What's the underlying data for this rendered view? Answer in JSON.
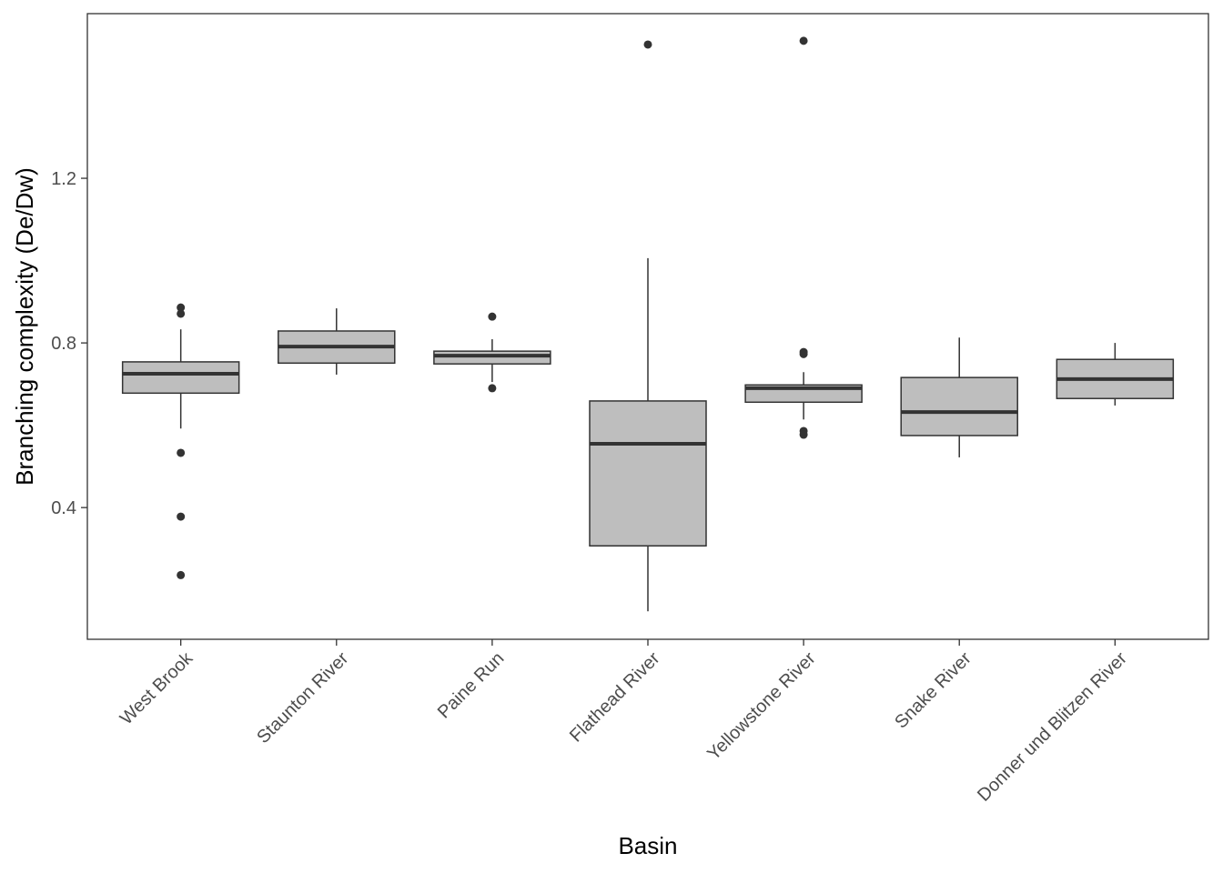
{
  "chart_data": {
    "type": "boxplot",
    "title": "",
    "xlabel": "Basin",
    "ylabel": "Branching complexity (De/Dw)",
    "ylim": [
      0.08,
      1.6
    ],
    "yticks": [
      0.4,
      0.8,
      1.2
    ],
    "ytick_labels": [
      "0.4",
      "0.8",
      "1.2"
    ],
    "grid": false,
    "fill_color": "#bebebe",
    "line_color": "#333333",
    "categories": [
      "West Brook",
      "Staunton River",
      "Paine Run",
      "Flathead River",
      "Yellowstone River",
      "Snake River",
      "Donner und Blitzen River"
    ],
    "boxes": [
      {
        "min": 0.592,
        "q1": 0.678,
        "median": 0.725,
        "q3": 0.754,
        "max": 0.833,
        "outliers": [
          0.886,
          0.871,
          0.533,
          0.378,
          0.236
        ]
      },
      {
        "min": 0.723,
        "q1": 0.751,
        "median": 0.791,
        "q3": 0.829,
        "max": 0.884,
        "outliers": []
      },
      {
        "min": 0.705,
        "q1": 0.749,
        "median": 0.769,
        "q3": 0.78,
        "max": 0.809,
        "outliers": [
          0.864,
          0.69
        ]
      },
      {
        "min": 0.148,
        "q1": 0.307,
        "median": 0.555,
        "q3": 0.659,
        "max": 1.006,
        "outliers": [
          1.525
        ]
      },
      {
        "min": 0.614,
        "q1": 0.656,
        "median": 0.69,
        "q3": 0.698,
        "max": 0.729,
        "outliers": [
          1.534,
          0.778,
          0.773,
          0.586,
          0.577
        ]
      },
      {
        "min": 0.522,
        "q1": 0.575,
        "median": 0.632,
        "q3": 0.716,
        "max": 0.813,
        "outliers": []
      },
      {
        "min": 0.648,
        "q1": 0.665,
        "median": 0.712,
        "q3": 0.76,
        "max": 0.8,
        "outliers": []
      }
    ]
  }
}
